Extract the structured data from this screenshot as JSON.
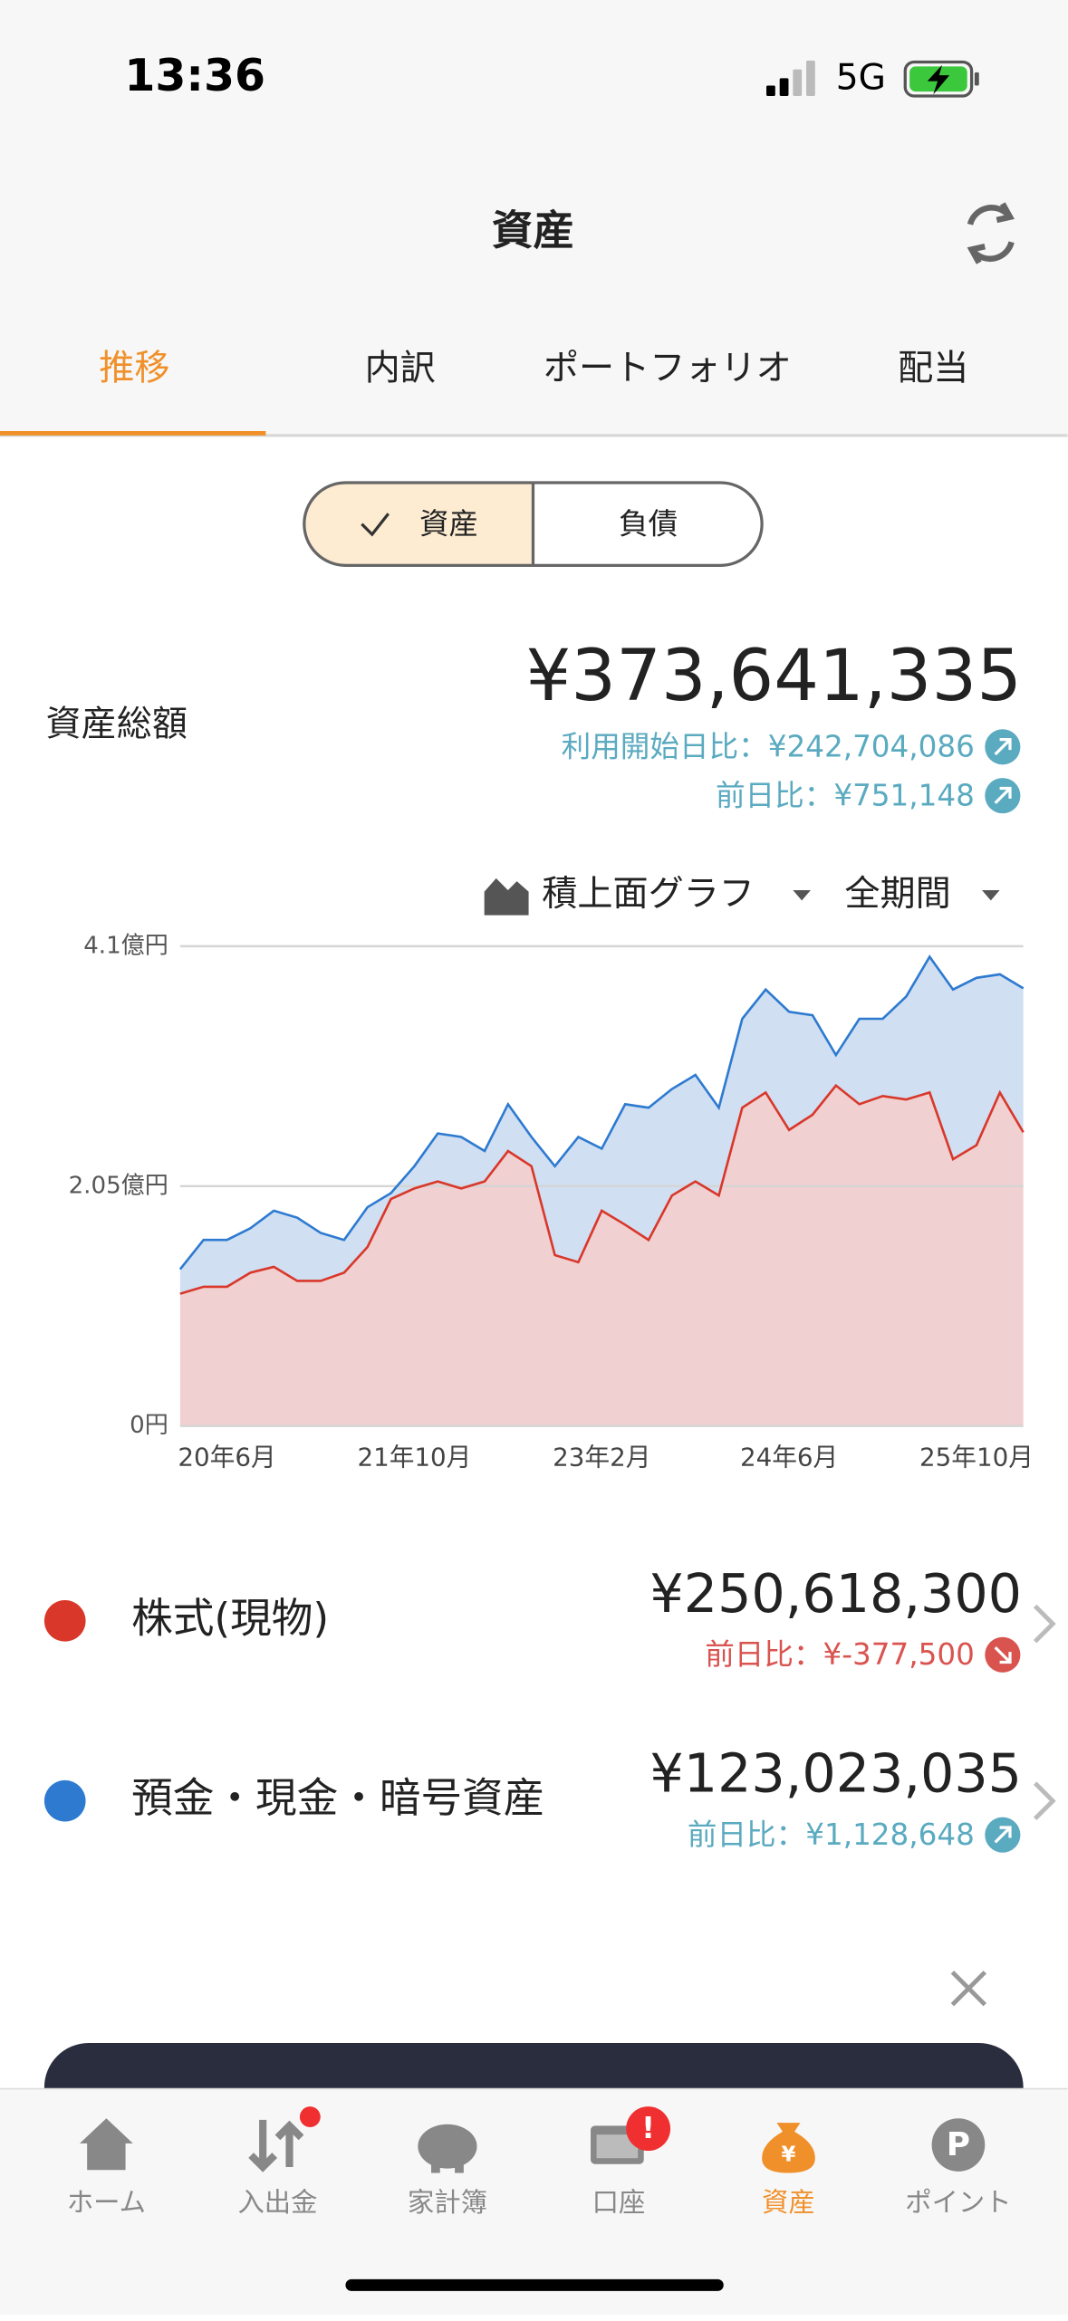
{
  "status_bar": {
    "time": "13:36",
    "network": "5G"
  },
  "header": {
    "title": "資産"
  },
  "tabs": [
    "推移",
    "内訳",
    "ポートフォリオ",
    "配当"
  ],
  "toggle": [
    "資産",
    "負債"
  ],
  "summary": {
    "label": "資産総額",
    "total": "¥373,641,335",
    "since_start": "利用開始日比：¥242,704,086",
    "day_change": "前日比：¥751,148"
  },
  "chart_controls": {
    "graph_type": "積上面グラフ",
    "period": "全期間"
  },
  "chart_data": {
    "type": "stacked-area",
    "categories": [
      null,
      null,
      "20年6月",
      null,
      null,
      null,
      null,
      null,
      null,
      null,
      "21年10月",
      null,
      null,
      null,
      null,
      null,
      null,
      null,
      "23年2月",
      null,
      null,
      null,
      null,
      null,
      null,
      null,
      "24年6月",
      null,
      null,
      null,
      null,
      null,
      null,
      null,
      "25年10月",
      null,
      null
    ],
    "series": [
      {
        "name": "株式(現物)",
        "color": "#d9372a",
        "fill": "#f0d0d0",
        "values": [
          1.13,
          1.19,
          1.19,
          1.31,
          1.36,
          1.24,
          1.24,
          1.31,
          1.53,
          1.94,
          2.03,
          2.09,
          2.03,
          2.09,
          2.35,
          2.22,
          1.46,
          1.4,
          1.84,
          1.72,
          1.59,
          1.97,
          2.09,
          1.97,
          2.72,
          2.85,
          2.53,
          2.66,
          2.91,
          2.75,
          2.82,
          2.79,
          2.85,
          2.28,
          2.4,
          2.85,
          2.51
        ]
      },
      {
        "name": "預金・現金・暗号資産",
        "color": "#2d7ad0",
        "fill": "#d0dff2",
        "values": [
          0.21,
          0.4,
          0.4,
          0.38,
          0.48,
          0.54,
          0.41,
          0.28,
          0.34,
          0.05,
          0.19,
          0.41,
          0.44,
          0.26,
          0.4,
          0.25,
          0.76,
          1.07,
          0.53,
          1.03,
          1.13,
          0.91,
          0.91,
          0.75,
          0.76,
          0.88,
          1.01,
          0.85,
          0.26,
          0.73,
          0.66,
          0.88,
          1.16,
          1.45,
          1.43,
          1.01,
          1.23
        ]
      }
    ],
    "ylim": [
      0,
      4.1
    ],
    "yticks": [
      {
        "value": 0,
        "label": "0円"
      },
      {
        "value": 2.05,
        "label": "2.05億円"
      },
      {
        "value": 4.1,
        "label": "4.1億円"
      }
    ],
    "grid": true
  },
  "breakdown": [
    {
      "name": "株式(現物)",
      "amount": "¥250,618,300",
      "change": "前日比：¥-377,500"
    },
    {
      "name": "預金・現金・暗号資産",
      "amount": "¥123,023,035",
      "change": "前日比：¥1,128,648"
    }
  ],
  "nav": [
    {
      "label": "ホーム"
    },
    {
      "label": "入出金"
    },
    {
      "label": "家計簿"
    },
    {
      "label": "口座",
      "badge": "!"
    },
    {
      "label": "資産",
      "icon_text": "¥"
    },
    {
      "label": "ポイント",
      "icon_text": "P"
    }
  ]
}
